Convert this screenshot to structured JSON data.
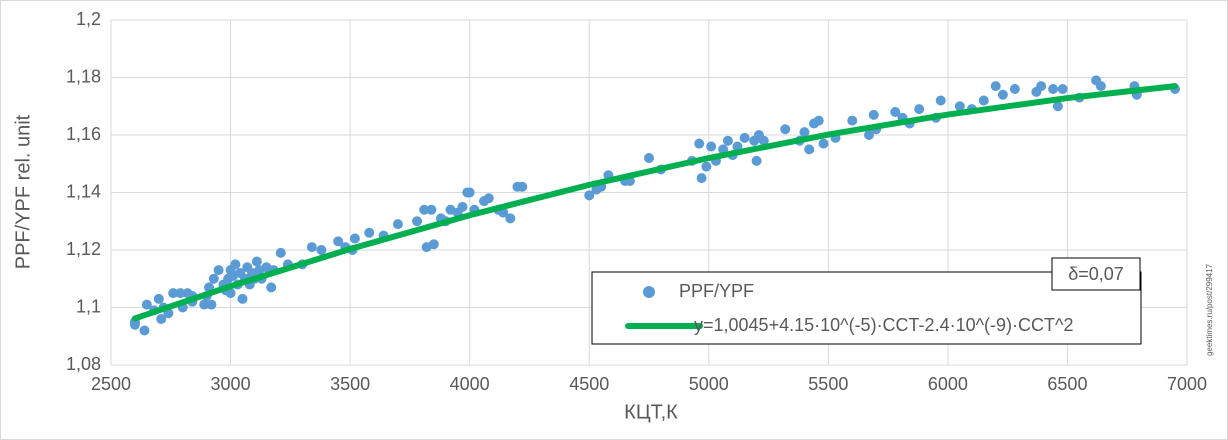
{
  "chart_data": {
    "type": "scatter",
    "x_label": "КЦТ,К",
    "y_label": "PPF/YPF rel. unit",
    "annotation": "δ=0,07",
    "watermark": "geektimes.ru/post/299417",
    "xlim": [
      2500,
      7000
    ],
    "xticks": [
      2500,
      3000,
      3500,
      4000,
      4500,
      5000,
      5500,
      6000,
      6500,
      7000
    ],
    "ylim": [
      1.08,
      1.2
    ],
    "yticks": [
      {
        "value": 1.08,
        "label": "1,08"
      },
      {
        "value": 1.1,
        "label": "1,1"
      },
      {
        "value": 1.12,
        "label": "1,12"
      },
      {
        "value": 1.14,
        "label": "1,14"
      },
      {
        "value": 1.16,
        "label": "1,16"
      },
      {
        "value": 1.18,
        "label": "1,18"
      },
      {
        "value": 1.2,
        "label": "1,2"
      }
    ],
    "grid": true,
    "legend": "lower right",
    "series": [
      {
        "name": "PPF/YPF",
        "color": "#5b9bd5",
        "mode": "markers",
        "x": [
          2600,
          2600,
          2640,
          2650,
          2680,
          2700,
          2710,
          2720,
          2740,
          2760,
          2790,
          2800,
          2820,
          2840,
          2840,
          2890,
          2900,
          2910,
          2920,
          2930,
          2950,
          2970,
          2980,
          2990,
          3000,
          3000,
          3010,
          3020,
          3030,
          3040,
          3050,
          3060,
          3070,
          3080,
          3090,
          3100,
          3110,
          3120,
          3130,
          3150,
          3170,
          3180,
          3210,
          3240,
          3300,
          3340,
          3380,
          3450,
          3480,
          3510,
          3520,
          3580,
          3640,
          3700,
          3780,
          3810,
          3820,
          3840,
          3850,
          3880,
          3900,
          3920,
          3950,
          3970,
          3990,
          4000,
          4020,
          4060,
          4080,
          4120,
          4140,
          4170,
          4200,
          4220,
          4500,
          4530,
          4550,
          4580,
          4650,
          4670,
          4750,
          4800,
          4930,
          4960,
          4970,
          4990,
          5010,
          5030,
          5060,
          5080,
          5100,
          5120,
          5150,
          5190,
          5200,
          5210,
          5230,
          5320,
          5380,
          5400,
          5420,
          5440,
          5460,
          5480,
          5530,
          5600,
          5670,
          5690,
          5700,
          5780,
          5810,
          5840,
          5880,
          5950,
          5970,
          6050,
          6100,
          6150,
          6200,
          6230,
          6280,
          6370,
          6390,
          6440,
          6460,
          6480,
          6550,
          6620,
          6640,
          6780,
          6790,
          6950
        ],
        "values": [
          1.095,
          1.094,
          1.092,
          1.101,
          1.099,
          1.103,
          1.096,
          1.1,
          1.098,
          1.105,
          1.105,
          1.1,
          1.105,
          1.104,
          1.102,
          1.101,
          1.104,
          1.107,
          1.101,
          1.11,
          1.113,
          1.108,
          1.106,
          1.11,
          1.113,
          1.105,
          1.111,
          1.115,
          1.108,
          1.112,
          1.103,
          1.11,
          1.114,
          1.108,
          1.112,
          1.11,
          1.116,
          1.113,
          1.11,
          1.114,
          1.107,
          1.113,
          1.119,
          1.115,
          1.115,
          1.121,
          1.12,
          1.123,
          1.121,
          1.12,
          1.124,
          1.126,
          1.125,
          1.129,
          1.13,
          1.134,
          1.121,
          1.134,
          1.122,
          1.131,
          1.13,
          1.134,
          1.133,
          1.135,
          1.14,
          1.14,
          1.134,
          1.137,
          1.138,
          1.134,
          1.133,
          1.131,
          1.142,
          1.142,
          1.139,
          1.141,
          1.142,
          1.146,
          1.144,
          1.144,
          1.152,
          1.148,
          1.151,
          1.157,
          1.145,
          1.149,
          1.156,
          1.151,
          1.155,
          1.158,
          1.153,
          1.156,
          1.159,
          1.158,
          1.151,
          1.16,
          1.158,
          1.162,
          1.158,
          1.161,
          1.155,
          1.164,
          1.165,
          1.157,
          1.159,
          1.165,
          1.16,
          1.167,
          1.162,
          1.168,
          1.166,
          1.164,
          1.169,
          1.166,
          1.172,
          1.17,
          1.169,
          1.172,
          1.177,
          1.174,
          1.176,
          1.175,
          1.177,
          1.176,
          1.17,
          1.176,
          1.173,
          1.179,
          1.177,
          1.177,
          1.174,
          1.176
        ]
      },
      {
        "name": "y=1,0045+4.15·10^(-5)·CCT-2.4·10^(-9)·CCT^2",
        "color": "#00b050",
        "mode": "line",
        "x": [
          2600,
          3000,
          3500,
          4000,
          4500,
          5000,
          5500,
          6000,
          6500,
          6950
        ],
        "values": [
          1.0962,
          1.1074,
          1.12035,
          1.1321,
          1.14265,
          1.152,
          1.16015,
          1.1671,
          1.17285,
          1.177
        ]
      }
    ]
  }
}
